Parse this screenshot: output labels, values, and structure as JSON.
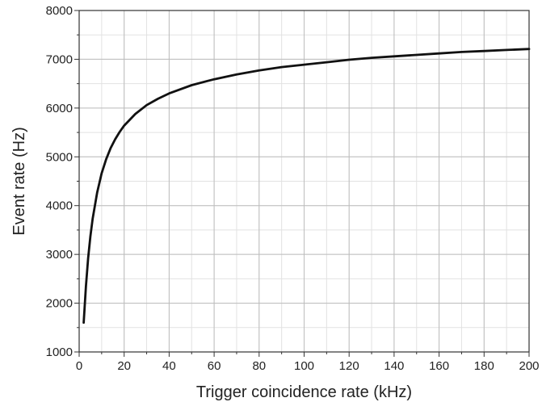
{
  "chart_data": {
    "type": "line",
    "title": "",
    "xlabel": "Trigger coincidence rate (kHz)",
    "ylabel": "Event rate (Hz)",
    "xlim": [
      0,
      200
    ],
    "ylim": [
      1000,
      8000
    ],
    "x_ticks": [
      0,
      20,
      40,
      60,
      80,
      100,
      120,
      140,
      160,
      180,
      200
    ],
    "y_ticks": [
      1000,
      2000,
      3000,
      4000,
      5000,
      6000,
      7000,
      8000
    ],
    "grid": "major and minor",
    "line_color": "#111111",
    "series": [
      {
        "name": "",
        "x": [
          2,
          3,
          4,
          5,
          6,
          8,
          10,
          12,
          14,
          16,
          18,
          20,
          25,
          30,
          35,
          40,
          50,
          60,
          70,
          80,
          90,
          100,
          110,
          120,
          130,
          140,
          150,
          160,
          170,
          180,
          190,
          200
        ],
        "y": [
          1600,
          2350,
          2920,
          3370,
          3730,
          4270,
          4660,
          4950,
          5180,
          5360,
          5510,
          5640,
          5880,
          6060,
          6190,
          6300,
          6470,
          6590,
          6690,
          6770,
          6840,
          6890,
          6940,
          6990,
          7030,
          7060,
          7090,
          7120,
          7150,
          7170,
          7190,
          7210
        ]
      }
    ]
  }
}
